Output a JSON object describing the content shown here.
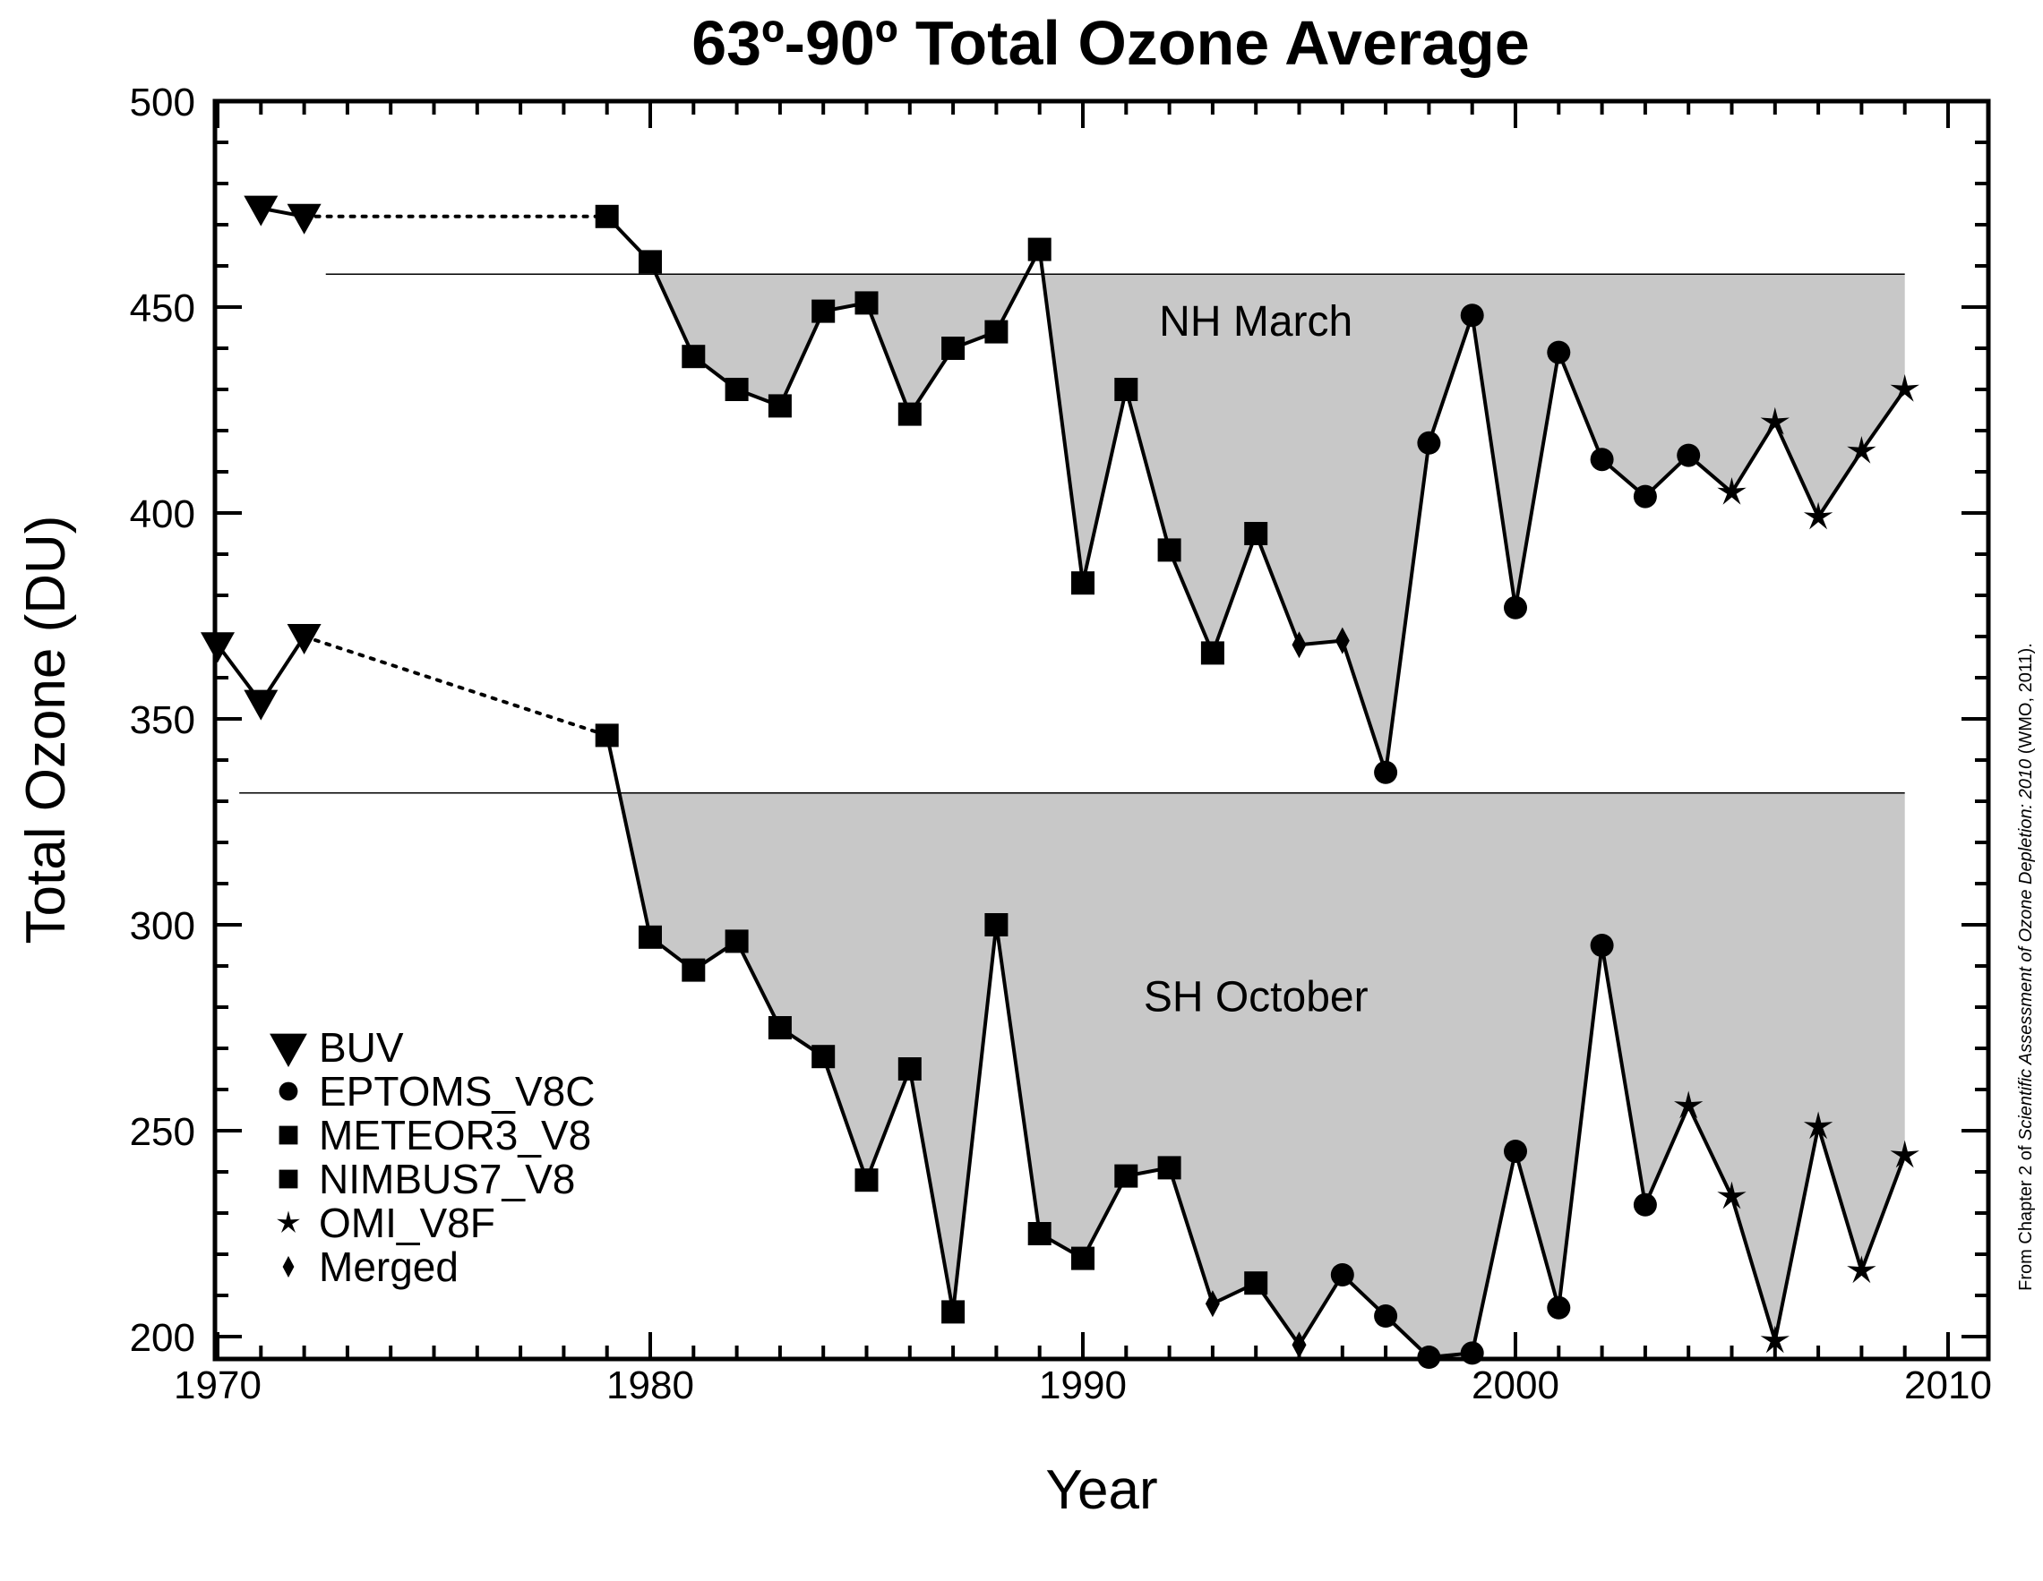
{
  "chart_data": {
    "type": "line",
    "title": "63º-90º  Total Ozone Average",
    "xlabel": "Year",
    "ylabel": "Total Ozone (DU)",
    "xlim": [
      1969.5,
      2010.5
    ],
    "ylim": [
      188,
      505
    ],
    "x_ticks": [
      1970,
      1980,
      1990,
      2000,
      2010
    ],
    "x_tick_labels": [
      "1970",
      "1980",
      "1990",
      "2000",
      "2010"
    ],
    "y_ticks": [
      200,
      250,
      300,
      350,
      400,
      450,
      500
    ],
    "y_tick_labels": [
      "200",
      "250",
      "300",
      "350",
      "400",
      "450",
      "500"
    ],
    "annotations": [
      {
        "text": "NH March",
        "x": 1994,
        "y": 443
      },
      {
        "text": "SH October",
        "x": 1994,
        "y": 279
      }
    ],
    "legend": {
      "position": "lower-left",
      "entries": [
        {
          "label": "BUV",
          "marker": "triangle-down"
        },
        {
          "label": "EPTOMS_V8C",
          "marker": "circle"
        },
        {
          "label": "METEOR3_V8",
          "marker": "square"
        },
        {
          "label": "NIMBUS7_V8",
          "marker": "square"
        },
        {
          "label": "OMI_V8F",
          "marker": "star"
        },
        {
          "label": "Merged",
          "marker": "diamond"
        }
      ]
    },
    "series": [
      {
        "name": "NH March",
        "reference_line": 458,
        "reference_range": [
          1972.5,
          2009
        ],
        "buv": {
          "x": [
            1971,
            1972
          ],
          "y": [
            474,
            472
          ]
        },
        "gap": {
          "x": [
            1972,
            1979
          ],
          "y": [
            472,
            472
          ]
        },
        "points": [
          {
            "x": 1979,
            "y": 472,
            "m": "square"
          },
          {
            "x": 1980,
            "y": 461,
            "m": "square"
          },
          {
            "x": 1981,
            "y": 438,
            "m": "square"
          },
          {
            "x": 1982,
            "y": 430,
            "m": "square"
          },
          {
            "x": 1983,
            "y": 426,
            "m": "square"
          },
          {
            "x": 1984,
            "y": 449,
            "m": "square"
          },
          {
            "x": 1985,
            "y": 451,
            "m": "square"
          },
          {
            "x": 1986,
            "y": 424,
            "m": "square"
          },
          {
            "x": 1987,
            "y": 440,
            "m": "square"
          },
          {
            "x": 1988,
            "y": 444,
            "m": "square"
          },
          {
            "x": 1989,
            "y": 464,
            "m": "square"
          },
          {
            "x": 1990,
            "y": 383,
            "m": "square"
          },
          {
            "x": 1991,
            "y": 430,
            "m": "square"
          },
          {
            "x": 1992,
            "y": 391,
            "m": "square"
          },
          {
            "x": 1993,
            "y": 366,
            "m": "square"
          },
          {
            "x": 1994,
            "y": 395,
            "m": "square"
          },
          {
            "x": 1995,
            "y": 368,
            "m": "diamond"
          },
          {
            "x": 1996,
            "y": 369,
            "m": "diamond"
          },
          {
            "x": 1997,
            "y": 337,
            "m": "circle"
          },
          {
            "x": 1998,
            "y": 417,
            "m": "circle"
          },
          {
            "x": 1999,
            "y": 448,
            "m": "circle"
          },
          {
            "x": 2000,
            "y": 377,
            "m": "circle"
          },
          {
            "x": 2001,
            "y": 439,
            "m": "circle"
          },
          {
            "x": 2002,
            "y": 413,
            "m": "circle"
          },
          {
            "x": 2003,
            "y": 404,
            "m": "circle"
          },
          {
            "x": 2004,
            "y": 414,
            "m": "circle"
          },
          {
            "x": 2005,
            "y": 405,
            "m": "star"
          },
          {
            "x": 2006,
            "y": 422,
            "m": "star"
          },
          {
            "x": 2007,
            "y": 399,
            "m": "star"
          },
          {
            "x": 2008,
            "y": 415,
            "m": "star"
          },
          {
            "x": 2009,
            "y": 430,
            "m": "star"
          }
        ]
      },
      {
        "name": "SH October",
        "reference_line": 332,
        "reference_range": [
          1970.5,
          2009
        ],
        "buv": {
          "x": [
            1970,
            1971,
            1972
          ],
          "y": [
            368,
            354,
            370
          ]
        },
        "gap": {
          "x": [
            1972,
            1979
          ],
          "y": [
            370,
            346
          ]
        },
        "points": [
          {
            "x": 1979,
            "y": 346,
            "m": "square"
          },
          {
            "x": 1980,
            "y": 297,
            "m": "square"
          },
          {
            "x": 1981,
            "y": 289,
            "m": "square"
          },
          {
            "x": 1982,
            "y": 296,
            "m": "square"
          },
          {
            "x": 1983,
            "y": 275,
            "m": "square"
          },
          {
            "x": 1984,
            "y": 268,
            "m": "square"
          },
          {
            "x": 1985,
            "y": 238,
            "m": "square"
          },
          {
            "x": 1986,
            "y": 265,
            "m": "square"
          },
          {
            "x": 1987,
            "y": 206,
            "m": "square"
          },
          {
            "x": 1988,
            "y": 300,
            "m": "square"
          },
          {
            "x": 1989,
            "y": 225,
            "m": "square"
          },
          {
            "x": 1990,
            "y": 219,
            "m": "square"
          },
          {
            "x": 1991,
            "y": 239,
            "m": "square"
          },
          {
            "x": 1992,
            "y": 241,
            "m": "square"
          },
          {
            "x": 1993,
            "y": 208,
            "m": "diamond"
          },
          {
            "x": 1994,
            "y": 213,
            "m": "square"
          },
          {
            "x": 1995,
            "y": 198,
            "m": "diamond"
          },
          {
            "x": 1996,
            "y": 215,
            "m": "circle"
          },
          {
            "x": 1997,
            "y": 205,
            "m": "circle"
          },
          {
            "x": 1998,
            "y": 195,
            "m": "circle"
          },
          {
            "x": 1999,
            "y": 196,
            "m": "circle"
          },
          {
            "x": 2000,
            "y": 245,
            "m": "circle"
          },
          {
            "x": 2001,
            "y": 207,
            "m": "circle"
          },
          {
            "x": 2002,
            "y": 295,
            "m": "circle"
          },
          {
            "x": 2003,
            "y": 232,
            "m": "circle"
          },
          {
            "x": 2004,
            "y": 256,
            "m": "star"
          },
          {
            "x": 2005,
            "y": 234,
            "m": "star"
          },
          {
            "x": 2006,
            "y": 199,
            "m": "star"
          },
          {
            "x": 2007,
            "y": 251,
            "m": "star"
          },
          {
            "x": 2008,
            "y": 216,
            "m": "star"
          },
          {
            "x": 2009,
            "y": 244,
            "m": "star"
          }
        ]
      }
    ],
    "credit": {
      "prefix": "From Chapter 2 of ",
      "italic": "Scientific Assessment of Ozone Depletion: 2010",
      "suffix": " (WMO, 2011)."
    }
  }
}
